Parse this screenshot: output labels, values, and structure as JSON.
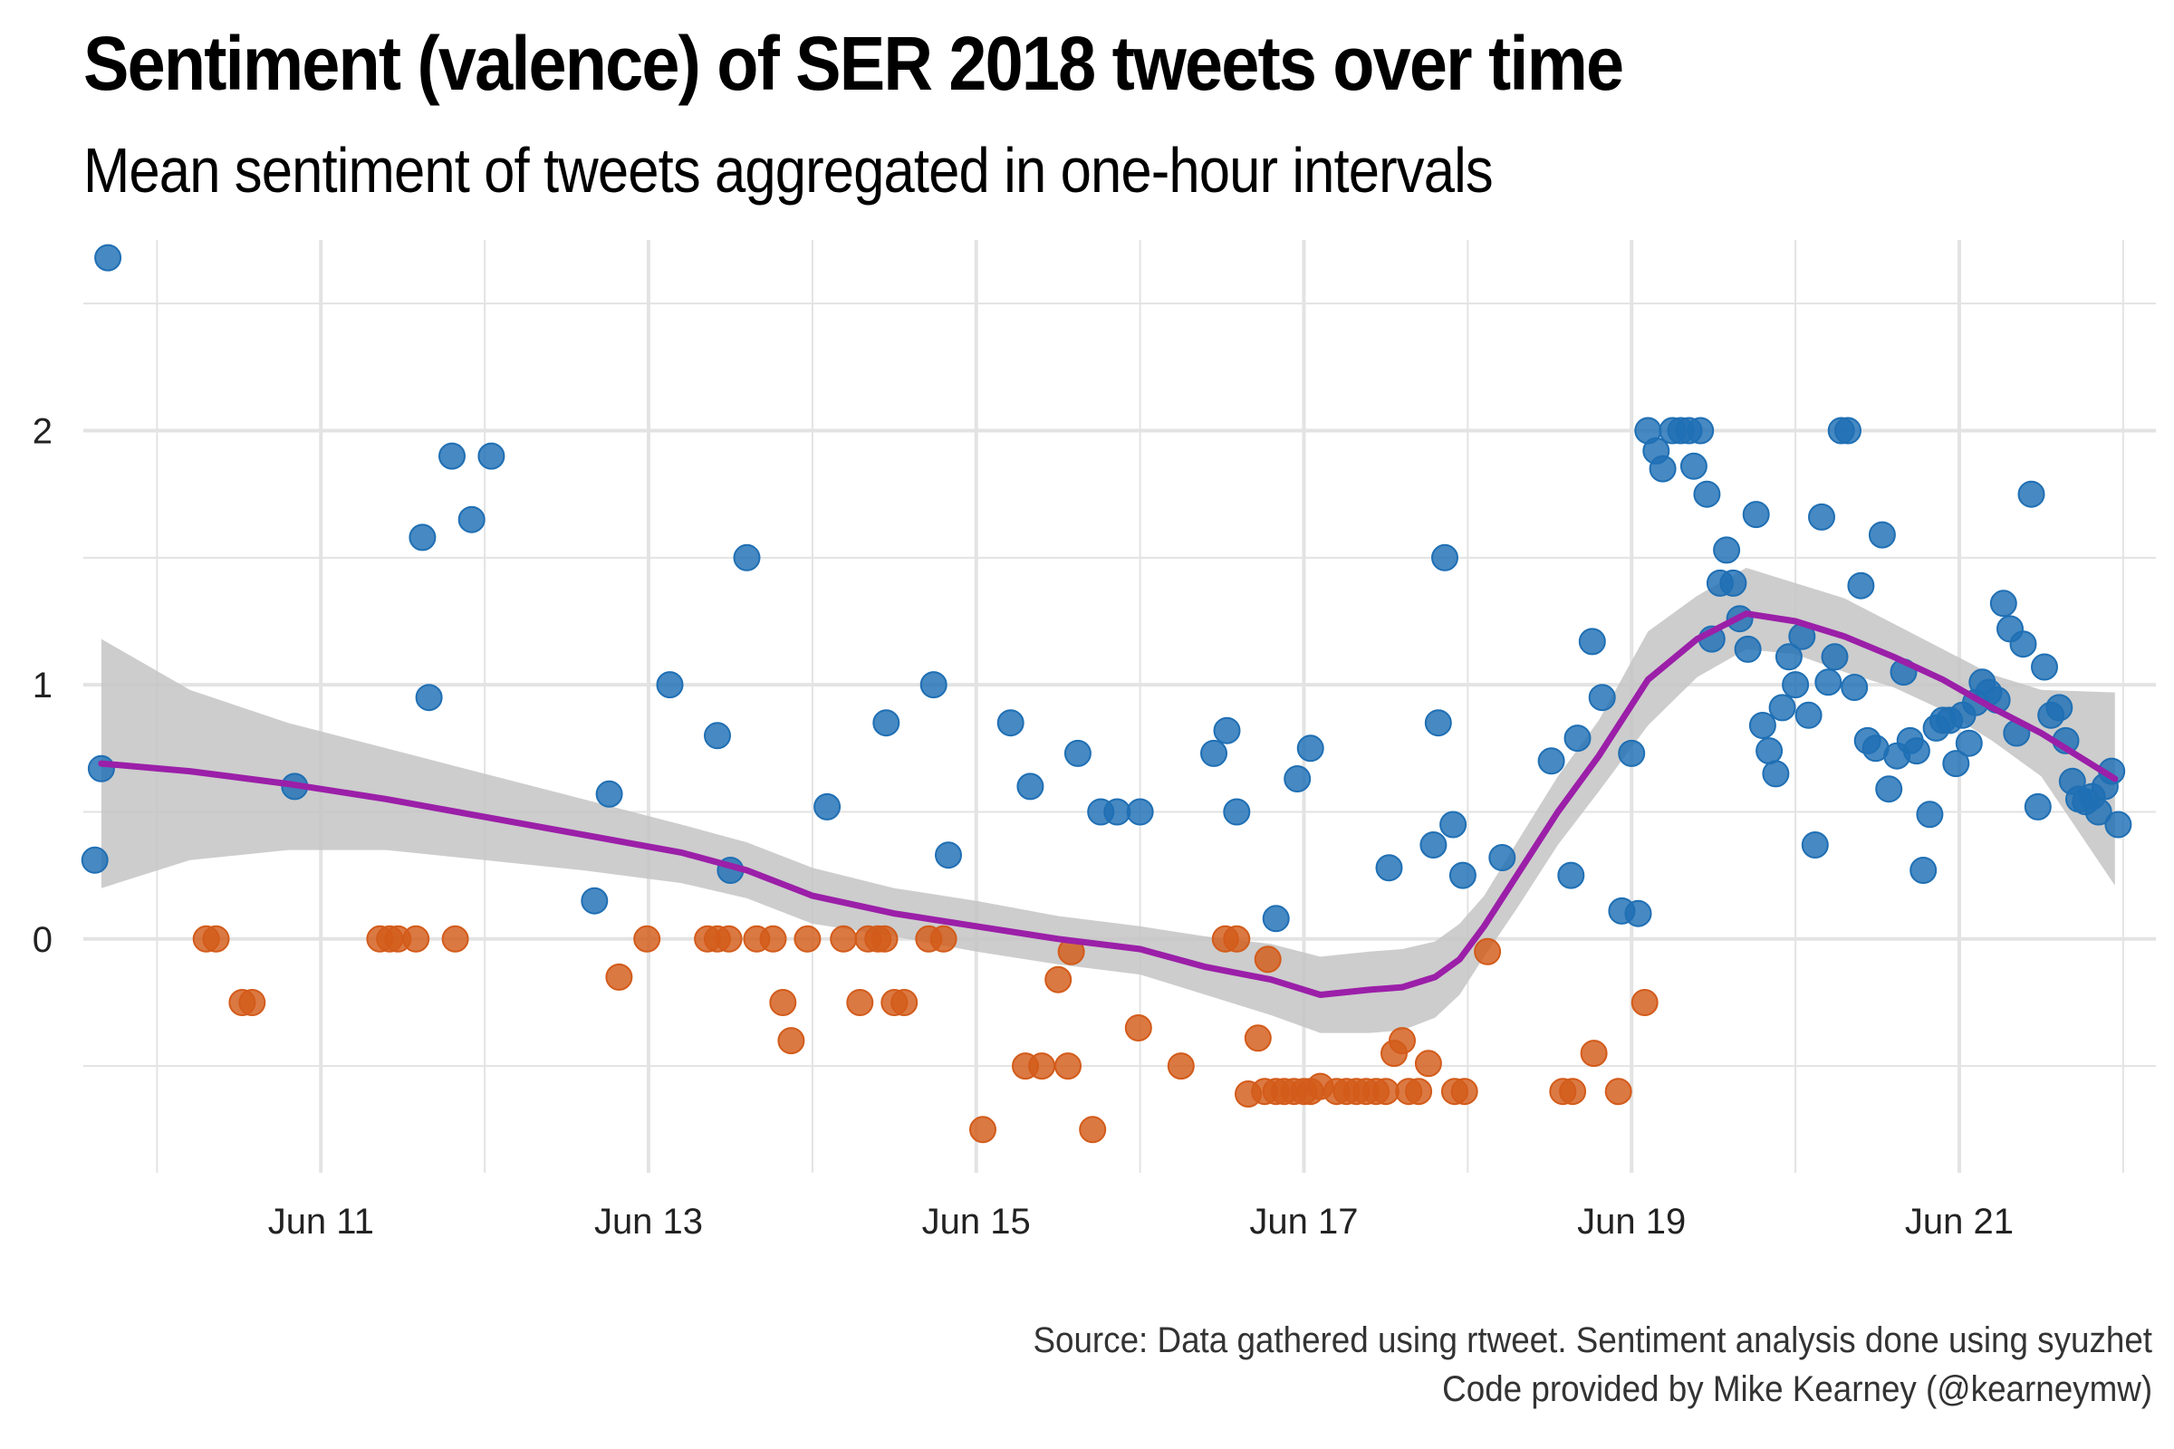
{
  "chart_data": {
    "type": "scatter",
    "title": "Sentiment (valence) of SER 2018 tweets over time",
    "subtitle": "Mean sentiment of tweets aggregated in one-hour intervals",
    "caption": [
      "Source: Data gathered using rtweet. Sentiment analysis done using syuzhet",
      "Code provided by Mike Kearney (@kearneymw)"
    ],
    "xlabel": "",
    "ylabel": "",
    "x_unit": "days in June 2018",
    "xlim": [
      9.55,
      22.2
    ],
    "ylim": [
      -0.92,
      2.75
    ],
    "x_ticks": [
      {
        "value": 11,
        "label": "Jun 11"
      },
      {
        "value": 13,
        "label": "Jun 13"
      },
      {
        "value": 15,
        "label": "Jun 15"
      },
      {
        "value": 17,
        "label": "Jun 17"
      },
      {
        "value": 19,
        "label": "Jun 19"
      },
      {
        "value": 21,
        "label": "Jun 21"
      }
    ],
    "x_minor_ticks": [
      10,
      12,
      14,
      16,
      18,
      20,
      22
    ],
    "y_ticks": [
      {
        "value": 0,
        "label": "0"
      },
      {
        "value": 1,
        "label": "1"
      },
      {
        "value": 2,
        "label": "2"
      }
    ],
    "y_minor_ticks": [
      -0.5,
      0.5,
      1.5,
      2.5
    ],
    "grid": true,
    "colors": {
      "positive": "#1f6fb4",
      "negative": "#d35b1a",
      "smooth_line": "#9b1fa8",
      "confidence_band": "#c4c4c4",
      "grid": "#e3e3e3"
    },
    "series": [
      {
        "color": "#1f6fb4",
        "points": [
          [
            9.62,
            0.31
          ],
          [
            9.66,
            0.67
          ],
          [
            9.7,
            2.68
          ],
          [
            10.84,
            0.6
          ],
          [
            11.62,
            1.58
          ],
          [
            11.66,
            0.95
          ],
          [
            11.8,
            1.9
          ],
          [
            11.92,
            1.65
          ],
          [
            12.04,
            1.9
          ],
          [
            12.67,
            0.15
          ],
          [
            12.76,
            0.57
          ],
          [
            13.13,
            1.0
          ],
          [
            13.42,
            0.8
          ],
          [
            13.5,
            0.27
          ],
          [
            13.6,
            1.5
          ],
          [
            14.09,
            0.52
          ],
          [
            14.45,
            0.85
          ],
          [
            14.74,
            1.0
          ],
          [
            14.83,
            0.33
          ],
          [
            15.21,
            0.85
          ],
          [
            15.33,
            0.6
          ],
          [
            15.62,
            0.73
          ],
          [
            15.76,
            0.5
          ],
          [
            15.86,
            0.5
          ],
          [
            16.0,
            0.5
          ],
          [
            16.45,
            0.73
          ],
          [
            16.53,
            0.82
          ],
          [
            16.59,
            0.5
          ],
          [
            16.83,
            0.08
          ],
          [
            16.96,
            0.63
          ],
          [
            17.04,
            0.75
          ],
          [
            17.52,
            0.28
          ],
          [
            17.79,
            0.37
          ],
          [
            17.82,
            0.85
          ],
          [
            17.86,
            1.5
          ],
          [
            17.91,
            0.45
          ],
          [
            17.97,
            0.25
          ],
          [
            18.21,
            0.32
          ],
          [
            18.51,
            0.7
          ],
          [
            18.63,
            0.25
          ],
          [
            18.67,
            0.79
          ],
          [
            18.76,
            1.17
          ],
          [
            18.82,
            0.95
          ],
          [
            18.94,
            0.11
          ],
          [
            19.0,
            0.73
          ],
          [
            19.04,
            0.1
          ],
          [
            19.1,
            2.0
          ],
          [
            19.15,
            1.92
          ],
          [
            19.19,
            1.85
          ],
          [
            19.25,
            2.0
          ],
          [
            19.3,
            2.0
          ],
          [
            19.35,
            2.0
          ],
          [
            19.38,
            1.86
          ],
          [
            19.42,
            2.0
          ],
          [
            19.46,
            1.75
          ],
          [
            19.49,
            1.18
          ],
          [
            19.54,
            1.4
          ],
          [
            19.58,
            1.53
          ],
          [
            19.62,
            1.4
          ],
          [
            19.66,
            1.26
          ],
          [
            19.71,
            1.14
          ],
          [
            19.76,
            1.67
          ],
          [
            19.8,
            0.84
          ],
          [
            19.84,
            0.74
          ],
          [
            19.88,
            0.65
          ],
          [
            19.92,
            0.91
          ],
          [
            19.96,
            1.11
          ],
          [
            20.0,
            1.0
          ],
          [
            20.04,
            1.19
          ],
          [
            20.08,
            0.88
          ],
          [
            20.12,
            0.37
          ],
          [
            20.16,
            1.66
          ],
          [
            20.2,
            1.01
          ],
          [
            20.24,
            1.11
          ],
          [
            20.28,
            2.0
          ],
          [
            20.32,
            2.0
          ],
          [
            20.36,
            0.99
          ],
          [
            20.4,
            1.39
          ],
          [
            20.44,
            0.78
          ],
          [
            20.49,
            0.75
          ],
          [
            20.53,
            1.59
          ],
          [
            20.57,
            0.59
          ],
          [
            20.62,
            0.72
          ],
          [
            20.66,
            1.05
          ],
          [
            20.7,
            0.78
          ],
          [
            20.74,
            0.74
          ],
          [
            20.78,
            0.27
          ],
          [
            20.82,
            0.49
          ],
          [
            20.86,
            0.83
          ],
          [
            20.9,
            0.86
          ],
          [
            20.94,
            0.86
          ],
          [
            20.98,
            0.69
          ],
          [
            21.02,
            0.88
          ],
          [
            21.06,
            0.77
          ],
          [
            21.1,
            0.93
          ],
          [
            21.14,
            1.01
          ],
          [
            21.18,
            0.97
          ],
          [
            21.23,
            0.94
          ],
          [
            21.27,
            1.32
          ],
          [
            21.31,
            1.22
          ],
          [
            21.35,
            0.81
          ],
          [
            21.39,
            1.16
          ],
          [
            21.44,
            1.75
          ],
          [
            21.48,
            0.52
          ],
          [
            21.52,
            1.07
          ],
          [
            21.56,
            0.88
          ],
          [
            21.61,
            0.91
          ],
          [
            21.65,
            0.78
          ],
          [
            21.69,
            0.62
          ],
          [
            21.73,
            0.55
          ],
          [
            21.77,
            0.54
          ],
          [
            21.81,
            0.56
          ],
          [
            21.85,
            0.5
          ],
          [
            21.89,
            0.6
          ],
          [
            21.93,
            0.66
          ],
          [
            21.97,
            0.45
          ]
        ]
      },
      {
        "color": "#d35b1a",
        "points": [
          [
            10.3,
            0
          ],
          [
            10.36,
            0
          ],
          [
            10.52,
            -0.25
          ],
          [
            10.58,
            -0.25
          ],
          [
            11.36,
            0
          ],
          [
            11.42,
            0
          ],
          [
            11.47,
            0
          ],
          [
            11.58,
            0
          ],
          [
            11.82,
            0
          ],
          [
            12.82,
            -0.15
          ],
          [
            12.99,
            0
          ],
          [
            13.36,
            0
          ],
          [
            13.42,
            0
          ],
          [
            13.49,
            0
          ],
          [
            13.66,
            0
          ],
          [
            13.76,
            0
          ],
          [
            13.82,
            -0.25
          ],
          [
            13.87,
            -0.4
          ],
          [
            13.97,
            0
          ],
          [
            14.19,
            0
          ],
          [
            14.29,
            -0.25
          ],
          [
            14.34,
            0
          ],
          [
            14.4,
            0
          ],
          [
            14.44,
            0
          ],
          [
            14.5,
            -0.25
          ],
          [
            14.56,
            -0.25
          ],
          [
            14.71,
            0
          ],
          [
            14.8,
            0
          ],
          [
            15.04,
            -0.75
          ],
          [
            15.3,
            -0.5
          ],
          [
            15.4,
            -0.5
          ],
          [
            15.5,
            -0.16
          ],
          [
            15.56,
            -0.5
          ],
          [
            15.58,
            -0.05
          ],
          [
            15.71,
            -0.75
          ],
          [
            15.99,
            -0.35
          ],
          [
            16.25,
            -0.5
          ],
          [
            16.52,
            0
          ],
          [
            16.59,
            0
          ],
          [
            16.66,
            -0.61
          ],
          [
            16.72,
            -0.39
          ],
          [
            16.78,
            -0.08
          ],
          [
            16.76,
            -0.6
          ],
          [
            16.83,
            -0.6
          ],
          [
            16.88,
            -0.6
          ],
          [
            16.94,
            -0.6
          ],
          [
            17.0,
            -0.6
          ],
          [
            17.04,
            -0.6
          ],
          [
            17.1,
            -0.58
          ],
          [
            17.2,
            -0.6
          ],
          [
            17.26,
            -0.6
          ],
          [
            17.32,
            -0.6
          ],
          [
            17.38,
            -0.6
          ],
          [
            17.44,
            -0.6
          ],
          [
            17.5,
            -0.6
          ],
          [
            17.55,
            -0.45
          ],
          [
            17.6,
            -0.4
          ],
          [
            17.64,
            -0.6
          ],
          [
            17.7,
            -0.6
          ],
          [
            17.76,
            -0.49
          ],
          [
            17.92,
            -0.6
          ],
          [
            17.98,
            -0.6
          ],
          [
            18.12,
            -0.05
          ],
          [
            18.58,
            -0.6
          ],
          [
            18.64,
            -0.6
          ],
          [
            18.77,
            -0.45
          ],
          [
            18.92,
            -0.6
          ],
          [
            19.08,
            -0.25
          ]
        ]
      }
    ],
    "smooth_line": {
      "x": [
        9.66,
        10.2,
        10.8,
        11.4,
        12.0,
        12.6,
        13.2,
        13.6,
        14.0,
        14.5,
        15.0,
        15.5,
        16.0,
        16.4,
        16.8,
        17.1,
        17.4,
        17.6,
        17.8,
        17.95,
        18.1,
        18.3,
        18.55,
        18.8,
        19.1,
        19.4,
        19.7,
        20.0,
        20.3,
        20.6,
        20.9,
        21.2,
        21.5,
        21.95
      ],
      "y": [
        0.69,
        0.66,
        0.61,
        0.55,
        0.48,
        0.41,
        0.34,
        0.27,
        0.17,
        0.1,
        0.05,
        0.0,
        -0.04,
        -0.11,
        -0.16,
        -0.22,
        -0.2,
        -0.19,
        -0.15,
        -0.08,
        0.05,
        0.25,
        0.5,
        0.72,
        1.02,
        1.18,
        1.28,
        1.25,
        1.19,
        1.11,
        1.02,
        0.91,
        0.81,
        0.63
      ]
    },
    "confidence_band": {
      "upper": [
        1.18,
        0.98,
        0.85,
        0.75,
        0.65,
        0.55,
        0.45,
        0.38,
        0.28,
        0.2,
        0.15,
        0.09,
        0.05,
        0.01,
        -0.02,
        -0.07,
        -0.05,
        -0.04,
        -0.01,
        0.06,
        0.17,
        0.38,
        0.64,
        0.86,
        1.21,
        1.35,
        1.46,
        1.4,
        1.34,
        1.24,
        1.14,
        1.04,
        0.98,
        0.97
      ],
      "lower": [
        0.2,
        0.31,
        0.35,
        0.35,
        0.31,
        0.27,
        0.22,
        0.16,
        0.06,
        0.01,
        -0.05,
        -0.1,
        -0.14,
        -0.22,
        -0.3,
        -0.37,
        -0.37,
        -0.36,
        -0.31,
        -0.22,
        -0.07,
        0.12,
        0.37,
        0.58,
        0.84,
        1.03,
        1.14,
        1.12,
        1.05,
        0.99,
        0.9,
        0.78,
        0.64,
        0.21
      ]
    }
  }
}
